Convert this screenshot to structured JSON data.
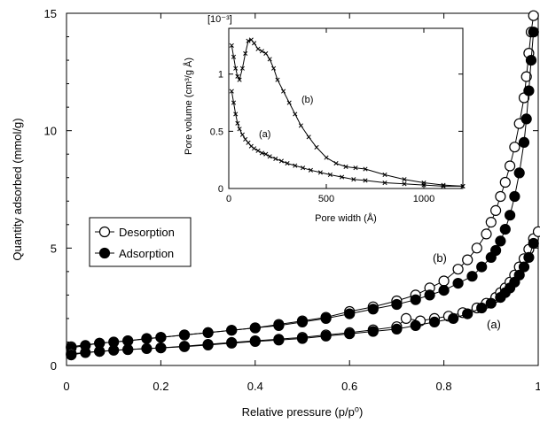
{
  "chart_data": [
    {
      "type": "scatter",
      "xlabel": "Relative pressure (p/p⁰)",
      "ylabel": "Quantity adsorbed (mmol/g)",
      "xlim": [
        0,
        1
      ],
      "ylim": [
        0,
        15
      ],
      "xticks": [
        "0",
        "0.2",
        "0.4",
        "0.6",
        "0.8",
        "1"
      ],
      "yticks": [
        "0",
        "5",
        "10",
        "15"
      ],
      "grid": false,
      "legend": {
        "placement": "left-middle",
        "entries": [
          {
            "label": "Desorption",
            "marker": "open-circle"
          },
          {
            "label": "Adsorption",
            "marker": "filled-circle"
          }
        ]
      },
      "annotations": [
        "(b)",
        "(a)"
      ],
      "series": [
        {
          "name": "Desorption",
          "sample": "(b)",
          "marker": "open-circle",
          "x": [
            0.01,
            0.07,
            0.13,
            0.2,
            0.25,
            0.3,
            0.35,
            0.4,
            0.45,
            0.5,
            0.55,
            0.6,
            0.65,
            0.7,
            0.74,
            0.77,
            0.8,
            0.83,
            0.85,
            0.87,
            0.89,
            0.9,
            0.91,
            0.92,
            0.93,
            0.94,
            0.95,
            0.96,
            0.97,
            0.975,
            0.98,
            0.985,
            0.99
          ],
          "y": [
            0.8,
            0.95,
            1.05,
            1.2,
            1.3,
            1.4,
            1.5,
            1.6,
            1.75,
            1.9,
            2.05,
            2.3,
            2.5,
            2.75,
            3.0,
            3.3,
            3.6,
            4.1,
            4.5,
            5.0,
            5.6,
            6.1,
            6.6,
            7.2,
            7.8,
            8.5,
            9.3,
            10.3,
            11.4,
            12.3,
            13.3,
            14.2,
            14.9
          ]
        },
        {
          "name": "Adsorption",
          "sample": "(b)",
          "marker": "filled-circle",
          "x": [
            0.01,
            0.04,
            0.07,
            0.1,
            0.13,
            0.17,
            0.2,
            0.25,
            0.3,
            0.35,
            0.4,
            0.45,
            0.5,
            0.55,
            0.6,
            0.65,
            0.7,
            0.74,
            0.77,
            0.8,
            0.83,
            0.86,
            0.88,
            0.9,
            0.91,
            0.92,
            0.93,
            0.94,
            0.95,
            0.96,
            0.97,
            0.975,
            0.98,
            0.985,
            0.99
          ],
          "y": [
            0.75,
            0.85,
            0.95,
            1.0,
            1.05,
            1.15,
            1.2,
            1.3,
            1.4,
            1.5,
            1.6,
            1.7,
            1.85,
            2.0,
            2.2,
            2.4,
            2.6,
            2.8,
            3.0,
            3.2,
            3.5,
            3.8,
            4.2,
            4.6,
            4.9,
            5.3,
            5.8,
            6.4,
            7.2,
            8.2,
            9.5,
            10.5,
            11.7,
            13.0,
            14.2
          ]
        },
        {
          "name": "Desorption",
          "sample": "(a)",
          "marker": "open-circle",
          "x": [
            0.01,
            0.07,
            0.13,
            0.2,
            0.25,
            0.3,
            0.35,
            0.4,
            0.45,
            0.5,
            0.55,
            0.6,
            0.65,
            0.7,
            0.72,
            0.75,
            0.78,
            0.81,
            0.84,
            0.87,
            0.89,
            0.91,
            0.92,
            0.93,
            0.94,
            0.95,
            0.96,
            0.97,
            0.98,
            0.99,
            1.0
          ],
          "y": [
            0.5,
            0.6,
            0.68,
            0.75,
            0.82,
            0.9,
            0.98,
            1.05,
            1.12,
            1.2,
            1.3,
            1.4,
            1.52,
            1.65,
            2.0,
            1.9,
            2.0,
            2.1,
            2.25,
            2.45,
            2.65,
            2.9,
            3.1,
            3.3,
            3.55,
            3.85,
            4.2,
            4.55,
            4.95,
            5.4,
            5.7
          ]
        },
        {
          "name": "Adsorption",
          "sample": "(a)",
          "marker": "filled-circle",
          "x": [
            0.01,
            0.04,
            0.07,
            0.1,
            0.13,
            0.17,
            0.2,
            0.25,
            0.3,
            0.35,
            0.4,
            0.45,
            0.5,
            0.55,
            0.6,
            0.65,
            0.7,
            0.74,
            0.78,
            0.82,
            0.85,
            0.88,
            0.9,
            0.92,
            0.93,
            0.94,
            0.95,
            0.96,
            0.97,
            0.98,
            0.99
          ],
          "y": [
            0.45,
            0.55,
            0.6,
            0.65,
            0.68,
            0.72,
            0.75,
            0.8,
            0.87,
            0.95,
            1.02,
            1.08,
            1.15,
            1.25,
            1.35,
            1.45,
            1.55,
            1.7,
            1.85,
            2.0,
            2.2,
            2.45,
            2.65,
            2.9,
            3.1,
            3.3,
            3.55,
            3.85,
            4.2,
            4.6,
            5.2
          ]
        }
      ]
    },
    {
      "type": "line",
      "inset": true,
      "xlabel": "Pore width (Å)",
      "ylabel": "Pore volume (cm³/g Å)",
      "y_multiplier": "[10⁻³]",
      "xlim": [
        0,
        1200
      ],
      "ylim": [
        0,
        1.4
      ],
      "xticks": [
        "0",
        "500",
        "1000"
      ],
      "yticks": [
        "0",
        "0.5",
        "1"
      ],
      "grid": false,
      "annotations": [
        "(b)",
        "(a)"
      ],
      "series": [
        {
          "sample": "(b)",
          "marker": "x",
          "x": [
            15,
            25,
            35,
            45,
            55,
            70,
            85,
            100,
            115,
            130,
            150,
            170,
            190,
            210,
            230,
            250,
            280,
            310,
            340,
            370,
            410,
            450,
            500,
            550,
            600,
            650,
            700,
            800,
            900,
            1000,
            1100,
            1200
          ],
          "y": [
            1.25,
            1.15,
            1.05,
            0.98,
            0.95,
            1.05,
            1.18,
            1.29,
            1.3,
            1.27,
            1.22,
            1.2,
            1.18,
            1.13,
            1.05,
            0.95,
            0.85,
            0.75,
            0.65,
            0.55,
            0.45,
            0.36,
            0.27,
            0.22,
            0.19,
            0.18,
            0.17,
            0.12,
            0.08,
            0.05,
            0.03,
            0.02
          ]
        },
        {
          "sample": "(a)",
          "marker": "x",
          "x": [
            15,
            25,
            35,
            45,
            55,
            70,
            85,
            100,
            115,
            130,
            150,
            170,
            190,
            210,
            240,
            270,
            300,
            340,
            380,
            420,
            470,
            520,
            580,
            640,
            700,
            800,
            900,
            1000,
            1100,
            1200
          ],
          "y": [
            0.85,
            0.75,
            0.65,
            0.57,
            0.52,
            0.47,
            0.43,
            0.4,
            0.37,
            0.35,
            0.33,
            0.31,
            0.3,
            0.28,
            0.26,
            0.24,
            0.22,
            0.2,
            0.18,
            0.16,
            0.14,
            0.12,
            0.1,
            0.08,
            0.07,
            0.05,
            0.04,
            0.03,
            0.02,
            0.02
          ]
        }
      ]
    }
  ]
}
